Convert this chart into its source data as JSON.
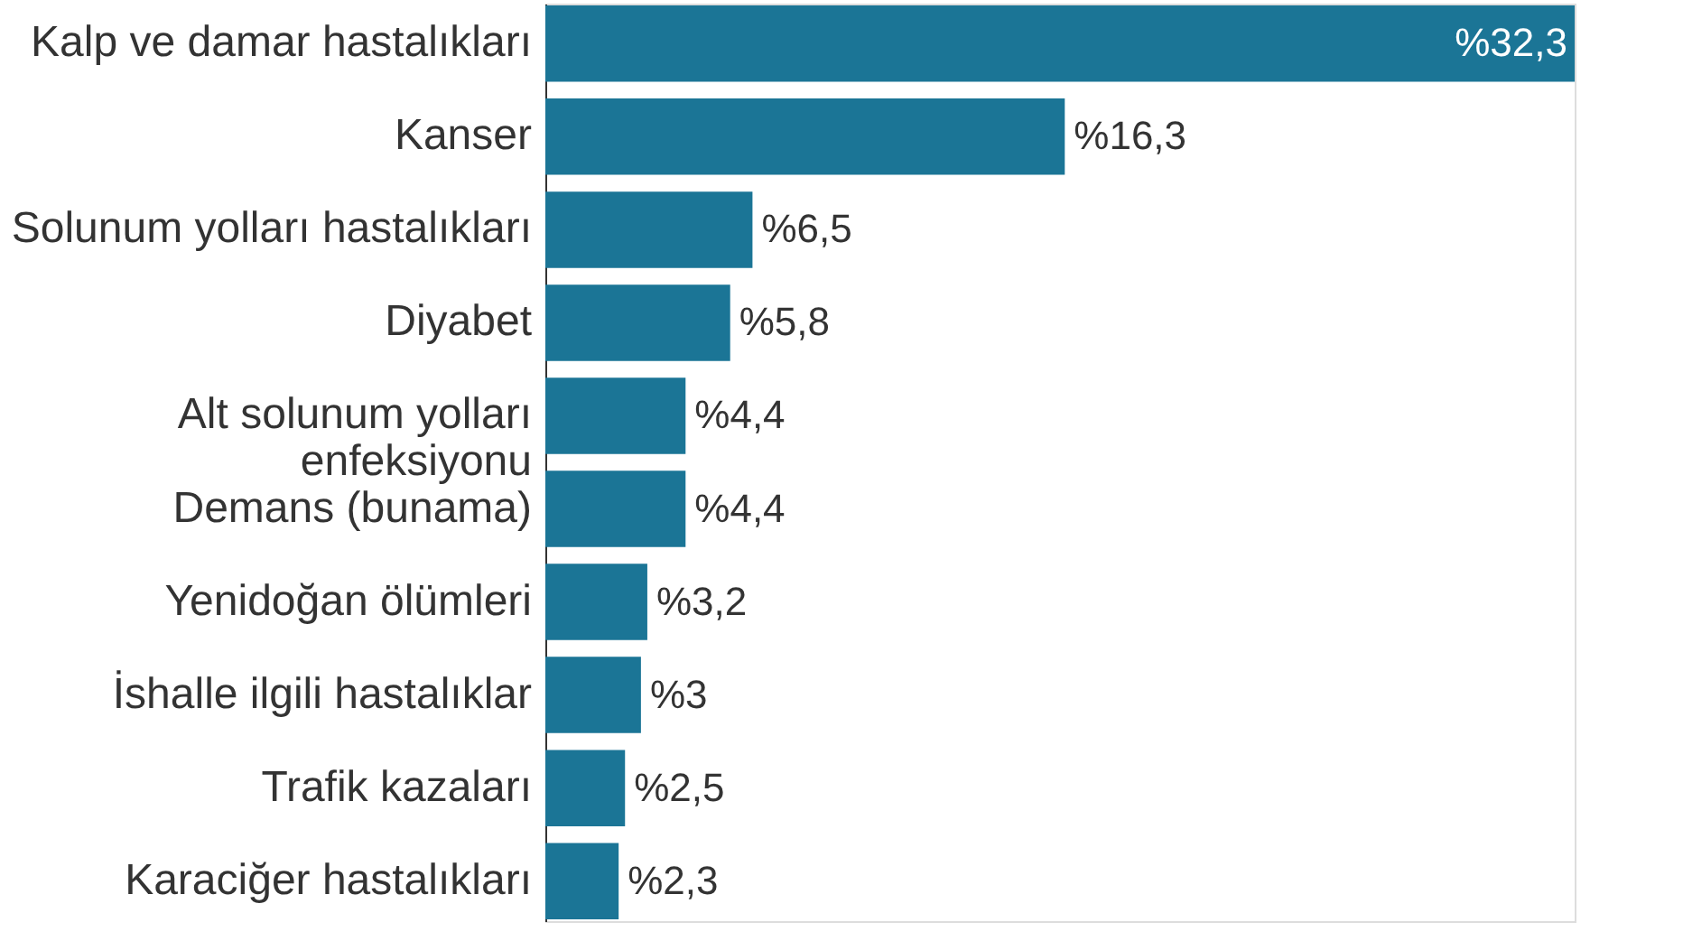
{
  "chart_data": {
    "type": "bar",
    "orientation": "horizontal",
    "categories": [
      "Kalp ve damar hastalıkları",
      "Kanser",
      "Solunum yolları hastalıkları",
      "Diyabet",
      "Alt solunum yolları\nenfeksiyonu",
      "Demans (bunama)",
      "Yenidoğan ölümleri",
      "İshalle ilgili hastalıklar",
      "Trafik kazaları",
      "Karaciğer hastalıkları"
    ],
    "values": [
      32.3,
      16.3,
      6.5,
      5.8,
      4.4,
      4.4,
      3.2,
      3,
      2.5,
      2.3
    ],
    "value_labels": [
      "%32,3",
      "%16,3",
      "%6,5",
      "%5,8",
      "%4,4",
      "%4,4",
      "%3,2",
      "%3",
      "%2,5",
      "%2,3"
    ],
    "color": "#1b7596",
    "tick_labels": "y"
  }
}
